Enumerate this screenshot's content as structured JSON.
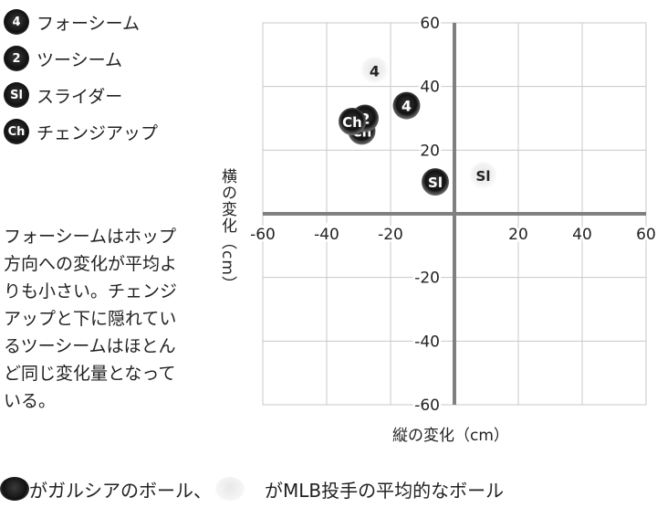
{
  "legend": {
    "items": [
      {
        "badge": "4",
        "label": "フォーシーム"
      },
      {
        "badge": "2",
        "label": "ツーシーム"
      },
      {
        "badge": "Sl",
        "label": "スライダー"
      },
      {
        "badge": "Ch",
        "label": "チェンジアップ"
      }
    ]
  },
  "note": "フォーシームはホップ\n方向への変化が平均よ\nりも小さい。チェンジ\nアップと下に隠れてい\nるツーシームはほとん\nど同じ変化量となって\nいる。",
  "footer": {
    "text1": "がガルシアのボール、",
    "text2": "がMLB投手の平均的なボール"
  },
  "colors": {
    "garcia": "#111111",
    "average": "#f2f2f2",
    "axis": "#808080",
    "grid": "#c8c8c8"
  },
  "chart_data": {
    "type": "scatter",
    "xlabel": "縦の変化（cm）",
    "ylabel": "横の変化（cm）",
    "xlim": [
      -60,
      60
    ],
    "ylim": [
      -60,
      60
    ],
    "x_ticks": [
      "-60",
      "-40",
      "-20",
      "20",
      "40",
      "60"
    ],
    "y_ticks": [
      "60",
      "40",
      "20",
      "-20",
      "-40",
      "-60"
    ],
    "grid": true,
    "series": [
      {
        "name": "がMLB投手の平均的なボール",
        "style": "average",
        "points": [
          {
            "label": "4",
            "x": -25,
            "y": 45
          },
          {
            "label": "Sl",
            "x": 9,
            "y": 12
          },
          {
            "label": "Ch",
            "x": -29,
            "y": 29
          },
          {
            "label": "2",
            "x": -29,
            "y": 29
          }
        ]
      },
      {
        "name": "がガルシアのボール",
        "style": "garcia",
        "points": [
          {
            "label": "4",
            "x": -15,
            "y": 34
          },
          {
            "label": "Sl",
            "x": -6,
            "y": 10
          },
          {
            "label": "Ch",
            "x": -29,
            "y": 26
          },
          {
            "label": "2",
            "x": -28,
            "y": 30
          },
          {
            "label": "Ch",
            "x": -32,
            "y": 29
          }
        ]
      }
    ]
  }
}
